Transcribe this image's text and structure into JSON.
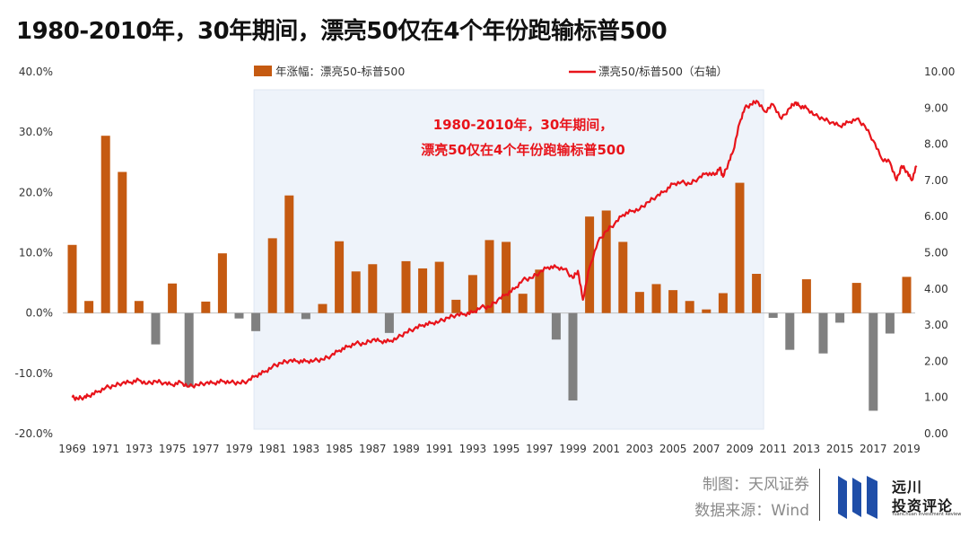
{
  "title": "1980-2010年，30年期间，漂亮50仅在4个年份跑输标普500",
  "chart_data": {
    "type": "bar+line",
    "title": "1980-2010年，30年期间，漂亮50仅在4个年份跑输标普500",
    "annotation": [
      "1980-2010年，30年期间，",
      "漂亮50仅在4个年份跑输标普500"
    ],
    "highlight_range": [
      1980,
      2010
    ],
    "categories": [
      1969,
      1970,
      1971,
      1972,
      1973,
      1974,
      1975,
      1976,
      1977,
      1978,
      1979,
      1980,
      1981,
      1982,
      1983,
      1984,
      1985,
      1986,
      1987,
      1988,
      1989,
      1990,
      1991,
      1992,
      1993,
      1994,
      1995,
      1996,
      1997,
      1998,
      1999,
      2000,
      2001,
      2002,
      2003,
      2004,
      2005,
      2006,
      2007,
      2008,
      2009,
      2010,
      2011,
      2012,
      2013,
      2014,
      2015,
      2016,
      2017,
      2018,
      2019
    ],
    "x_tick_labels": [
      "1969",
      "1971",
      "1973",
      "1975",
      "1977",
      "1979",
      "1981",
      "1983",
      "1985",
      "1987",
      "1989",
      "1991",
      "1993",
      "1995",
      "1997",
      "1999",
      "2001",
      "2003",
      "2005",
      "2007",
      "2009",
      "2011",
      "2013",
      "2015",
      "2017",
      "2019"
    ],
    "series": [
      {
        "name": "年涨幅：漂亮50-标普500",
        "type": "bar",
        "axis": "left",
        "positive_color": "#c55a11",
        "negative_color": "#808080",
        "values": [
          11.3,
          2.0,
          29.4,
          23.4,
          2.0,
          -5.2,
          4.9,
          -12.2,
          1.9,
          9.9,
          -0.9,
          -3.0,
          12.4,
          19.5,
          -1.0,
          1.5,
          11.9,
          6.9,
          8.1,
          -3.3,
          8.6,
          7.4,
          8.5,
          2.2,
          6.3,
          12.1,
          11.8,
          3.2,
          7.2,
          -4.4,
          -14.5,
          16.0,
          17.0,
          11.8,
          3.5,
          4.8,
          3.8,
          2.0,
          0.6,
          3.3,
          21.6,
          6.5,
          -0.8,
          -6.1,
          5.6,
          -6.7,
          -1.6,
          5.0,
          -16.2,
          -3.4,
          6.0
        ]
      },
      {
        "name": "漂亮50/标普500（右轴）",
        "type": "line",
        "axis": "right",
        "color": "#e8141b",
        "x": [
          1969.0,
          1969.3,
          1969.7,
          1970.0,
          1970.5,
          1971.0,
          1971.5,
          1972.0,
          1972.5,
          1973.0,
          1973.5,
          1974.0,
          1974.5,
          1975.0,
          1975.5,
          1976.0,
          1976.5,
          1977.0,
          1977.5,
          1978.0,
          1978.5,
          1979.0,
          1979.5,
          1980.0,
          1980.5,
          1981.0,
          1981.5,
          1982.0,
          1982.5,
          1983.0,
          1983.5,
          1984.0,
          1984.5,
          1985.0,
          1985.5,
          1986.0,
          1986.5,
          1987.0,
          1987.5,
          1988.0,
          1988.5,
          1989.0,
          1989.5,
          1990.0,
          1990.5,
          1991.0,
          1991.5,
          1992.0,
          1992.5,
          1993.0,
          1993.5,
          1994.0,
          1994.5,
          1995.0,
          1995.5,
          1996.0,
          1996.5,
          1997.0,
          1997.5,
          1998.0,
          1998.5,
          1999.0,
          1999.3,
          1999.6,
          2000.0,
          2000.5,
          2001.0,
          2001.5,
          2002.0,
          2002.5,
          2003.0,
          2003.5,
          2004.0,
          2004.5,
          2005.0,
          2005.5,
          2006.0,
          2006.5,
          2007.0,
          2007.5,
          2007.8,
          2008.0,
          2008.3,
          2008.6,
          2009.0,
          2009.3,
          2009.7,
          2010.0,
          2010.5,
          2011.0,
          2011.5,
          2012.0,
          2012.3,
          2012.6,
          2013.0,
          2013.5,
          2014.0,
          2014.5,
          2015.0,
          2015.5,
          2016.0,
          2016.5,
          2017.0,
          2017.5,
          2018.0,
          2018.4,
          2018.7,
          2019.0,
          2019.3,
          2019.6
        ],
        "values": [
          1.0,
          0.97,
          1.0,
          1.05,
          1.15,
          1.27,
          1.32,
          1.4,
          1.42,
          1.48,
          1.38,
          1.45,
          1.4,
          1.35,
          1.42,
          1.3,
          1.35,
          1.4,
          1.4,
          1.45,
          1.42,
          1.4,
          1.45,
          1.6,
          1.7,
          1.85,
          1.95,
          2.02,
          2.0,
          2.0,
          2.02,
          2.05,
          2.15,
          2.3,
          2.4,
          2.5,
          2.48,
          2.6,
          2.55,
          2.55,
          2.65,
          2.8,
          2.9,
          3.0,
          3.05,
          3.1,
          3.2,
          3.28,
          3.3,
          3.35,
          3.5,
          3.5,
          3.7,
          3.85,
          4.0,
          4.25,
          4.3,
          4.45,
          4.6,
          4.6,
          4.55,
          4.3,
          4.5,
          3.7,
          4.6,
          5.3,
          5.6,
          5.8,
          6.05,
          6.15,
          6.2,
          6.4,
          6.55,
          6.7,
          6.9,
          6.95,
          6.9,
          7.05,
          7.2,
          7.15,
          7.35,
          7.1,
          7.45,
          7.8,
          8.6,
          9.0,
          9.1,
          9.2,
          8.9,
          9.1,
          8.7,
          9.0,
          9.15,
          9.05,
          9.0,
          8.8,
          8.7,
          8.6,
          8.5,
          8.6,
          8.7,
          8.5,
          8.1,
          7.6,
          7.5,
          7.0,
          7.4,
          7.25,
          7.0,
          7.4
        ]
      }
    ],
    "y_left": {
      "min": -20,
      "max": 40,
      "step": 10,
      "tick_labels": [
        "40.0%",
        "30.0%",
        "20.0%",
        "10.0%",
        "0.0%",
        "-10.0%",
        "-20.0%"
      ]
    },
    "y_right": {
      "min": 0,
      "max": 10,
      "step": 1,
      "tick_labels": [
        "10.00",
        "9.00",
        "8.00",
        "7.00",
        "6.00",
        "5.00",
        "4.00",
        "3.00",
        "2.00",
        "1.00",
        "0.00"
      ]
    },
    "legend": [
      "年涨幅：漂亮50-标普500",
      "漂亮50/标普500（右轴）"
    ],
    "legend_position": "top",
    "grid": false
  },
  "footer": {
    "maker": "制图：天风证券",
    "source": "数据来源：Wind"
  },
  "logo": {
    "cn_line1": "远川",
    "cn_line2": "投资评论",
    "en": "YuanChuan Investment Review",
    "bar_color": "#1f4ea8"
  }
}
